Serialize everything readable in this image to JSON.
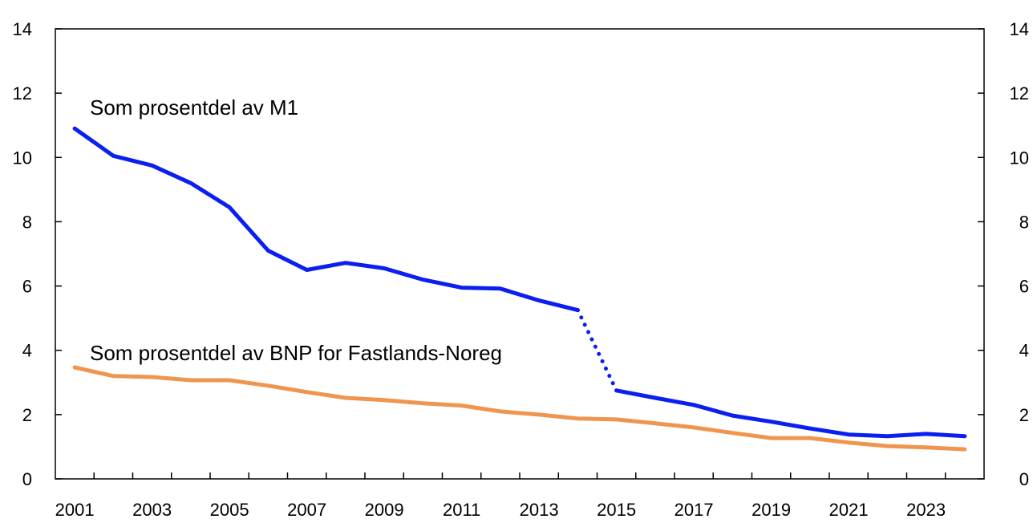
{
  "chart_data": {
    "type": "line",
    "title": "",
    "xlabel": "",
    "ylabel": "",
    "x": [
      2001,
      2002,
      2003,
      2004,
      2005,
      2006,
      2007,
      2008,
      2009,
      2010,
      2011,
      2012,
      2013,
      2014,
      2015,
      2016,
      2017,
      2018,
      2019,
      2020,
      2021,
      2022,
      2023,
      2024
    ],
    "xlim": [
      2000.5,
      2024.5
    ],
    "ylim": [
      0,
      14
    ],
    "x_ticks": [
      "2001",
      "2003",
      "2005",
      "2007",
      "2009",
      "2011",
      "2013",
      "2015",
      "2017",
      "2019",
      "2021",
      "2023"
    ],
    "y_ticks_left": [
      "0",
      "2",
      "4",
      "6",
      "8",
      "10",
      "12",
      "14"
    ],
    "y_ticks_right": [
      "0",
      "2",
      "4",
      "6",
      "8",
      "10",
      "12",
      "14"
    ],
    "grid": false,
    "series": [
      {
        "name": "Som prosentdel av M1",
        "color": "#0a1ff0",
        "values": [
          10.9,
          10.05,
          9.75,
          9.2,
          8.45,
          7.1,
          6.5,
          6.72,
          6.55,
          6.2,
          5.95,
          5.92,
          5.55,
          5.25,
          2.75,
          2.52,
          2.3,
          1.97,
          1.78,
          1.57,
          1.38,
          1.33,
          1.4,
          1.33
        ],
        "dotted_segment": [
          2014,
          2015
        ]
      },
      {
        "name": "Som prosentdel av BNP for Fastlands-Noreg",
        "color": "#f0954d",
        "values": [
          3.47,
          3.2,
          3.17,
          3.07,
          3.07,
          2.9,
          2.7,
          2.52,
          2.45,
          2.35,
          2.28,
          2.1,
          2.0,
          1.88,
          1.85,
          1.73,
          1.6,
          1.43,
          1.27,
          1.27,
          1.13,
          1.02,
          0.98,
          0.92
        ]
      }
    ]
  }
}
